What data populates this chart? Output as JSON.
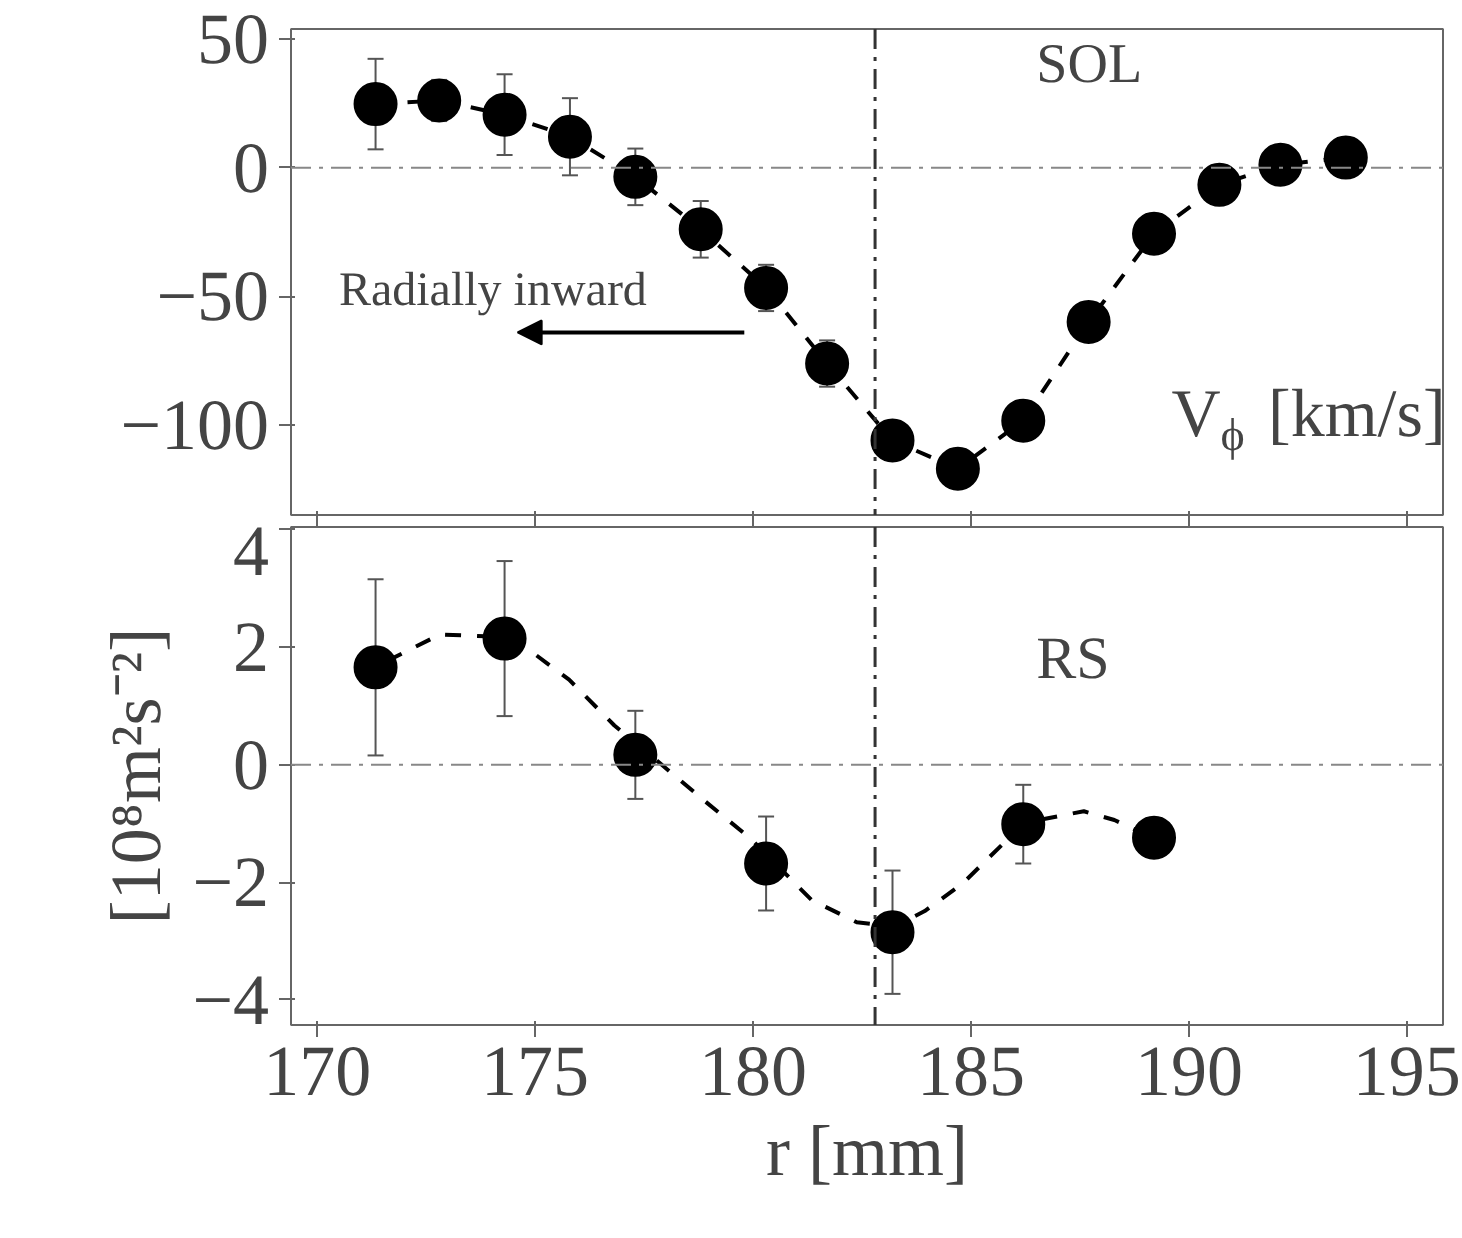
{
  "chart_data": [
    {
      "type": "line",
      "x": [
        171.34,
        172.8,
        174.3,
        175.8,
        177.3,
        178.8,
        180.3,
        181.7,
        183.2,
        184.7,
        186.2,
        187.7,
        189.2,
        190.7,
        192.1,
        193.6
      ],
      "series": [
        {
          "color": "#000000",
          "values": [
            24.8,
            26.2,
            20.7,
            12.1,
            -3.5,
            -23.9,
            -46.7,
            -76.1,
            -106,
            -117,
            -98.3,
            -59.9,
            -25.6,
            -6.6,
            1.2,
            4.0
          ],
          "errors": [
            17.6,
            8,
            15.7,
            15,
            11,
            11,
            9,
            9,
            null,
            null,
            null,
            null,
            null,
            null,
            null,
            null
          ]
        }
      ],
      "marker": "circle",
      "line_style": "dashed",
      "xlim": [
        169.4,
        195.83
      ],
      "xticks": [
        170,
        175,
        180,
        185,
        190,
        195
      ],
      "ylim": [
        -135,
        54
      ],
      "yticks": [
        -100,
        -50,
        0,
        50
      ],
      "tick_labels": "y",
      "grid": false,
      "ref_lines": [
        {
          "axis": "x",
          "value": 182.8
        },
        {
          "axis": "y",
          "value": 0
        }
      ],
      "annotations": [
        "SOL",
        "V$_{ϕ}$ [km/s]",
        "Radially inward"
      ]
    },
    {
      "type": "scatter",
      "x": [
        171.34,
        174.3,
        177.3,
        180.3,
        183.2,
        186.2,
        189.2
      ],
      "series": [
        {
          "color": "#000000",
          "values": [
            1.66,
            2.15,
            0.17,
            -1.68,
            -2.85,
            -1.01,
            -1.24
          ],
          "errors": [
            1.5,
            1.32,
            0.75,
            0.8,
            1.05,
            0.67,
            null
          ]
        },
        {
          "type": "line",
          "color": "#000000",
          "line_style": "dashed",
          "marker": "none",
          "x": [
            171.61,
            172.82,
            173.87,
            174.73,
            175.78,
            176.82,
            177.86,
            178.9,
            179.95,
            181.34,
            182.38,
            183.25,
            183.94,
            184.81,
            185.85,
            186.55,
            187.59,
            188.29,
            189.16
          ],
          "values": [
            1.77,
            2.22,
            2.19,
            2.03,
            1.45,
            0.67,
            0.03,
            -0.62,
            -1.26,
            -2.3,
            -2.68,
            -2.75,
            -2.49,
            -2.02,
            -1.26,
            -0.94,
            -0.79,
            -0.94,
            -1.24
          ]
        }
      ],
      "marker": "circle",
      "xlim": [
        169.4,
        195.83
      ],
      "xticks": [
        170,
        175,
        180,
        185,
        190,
        195
      ],
      "ylim": [
        -4.43,
        4.05
      ],
      "yticks": [
        -4,
        -2,
        0,
        2,
        4
      ],
      "grid": false,
      "xlabel": "r [mm]",
      "ylabel": "[10⁸m²s⁻²]",
      "ref_lines": [
        {
          "axis": "x",
          "value": 182.8
        },
        {
          "axis": "y",
          "value": 0
        }
      ],
      "annotations": [
        "RS"
      ]
    }
  ]
}
